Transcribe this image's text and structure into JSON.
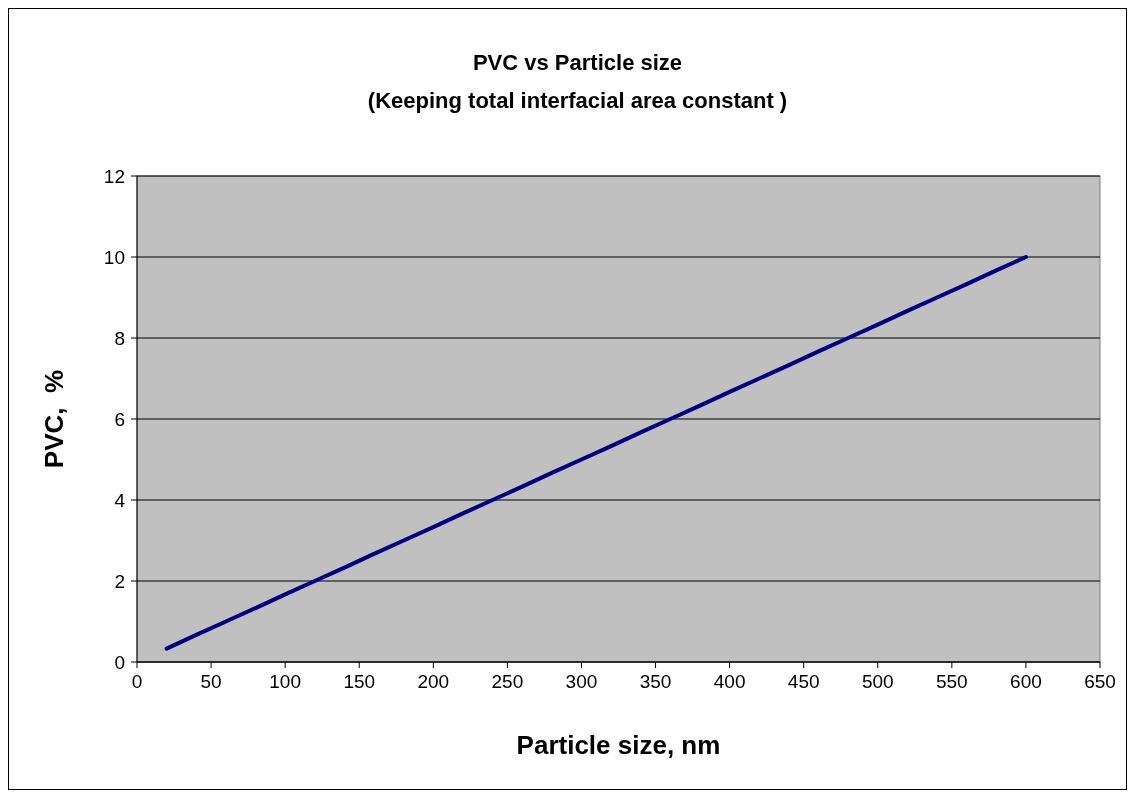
{
  "chart_data": {
    "type": "line",
    "title": "PVC vs Particle size",
    "subtitle": "(Keeping total interfacial area constant )",
    "xlabel": "Particle size, nm",
    "ylabel": "PVC,  %",
    "series": [
      {
        "color": "#000080",
        "x": [
          20,
          40,
          60,
          80,
          100,
          120,
          140,
          160,
          180,
          200,
          220,
          240,
          260,
          280,
          300,
          320,
          340,
          360,
          380,
          400,
          420,
          440,
          460,
          480,
          500,
          520,
          540,
          560,
          580,
          600
        ],
        "values": [
          0.33,
          0.67,
          1,
          1.33,
          1.67,
          2,
          2.33,
          2.67,
          3,
          3.33,
          3.67,
          4,
          4.33,
          4.67,
          5,
          5.33,
          5.67,
          6,
          6.33,
          6.67,
          7,
          7.33,
          7.67,
          8,
          8.33,
          8.67,
          9,
          9.33,
          9.67,
          10
        ]
      }
    ],
    "xlim": [
      0,
      650
    ],
    "xticks": [
      0,
      50,
      100,
      150,
      200,
      250,
      300,
      350,
      400,
      450,
      500,
      550,
      600,
      650
    ],
    "ylim": [
      0,
      12
    ],
    "yticks": [
      0,
      2,
      4,
      6,
      8,
      10,
      12
    ],
    "grid": "y",
    "marker": "none",
    "line_style": "solid"
  }
}
